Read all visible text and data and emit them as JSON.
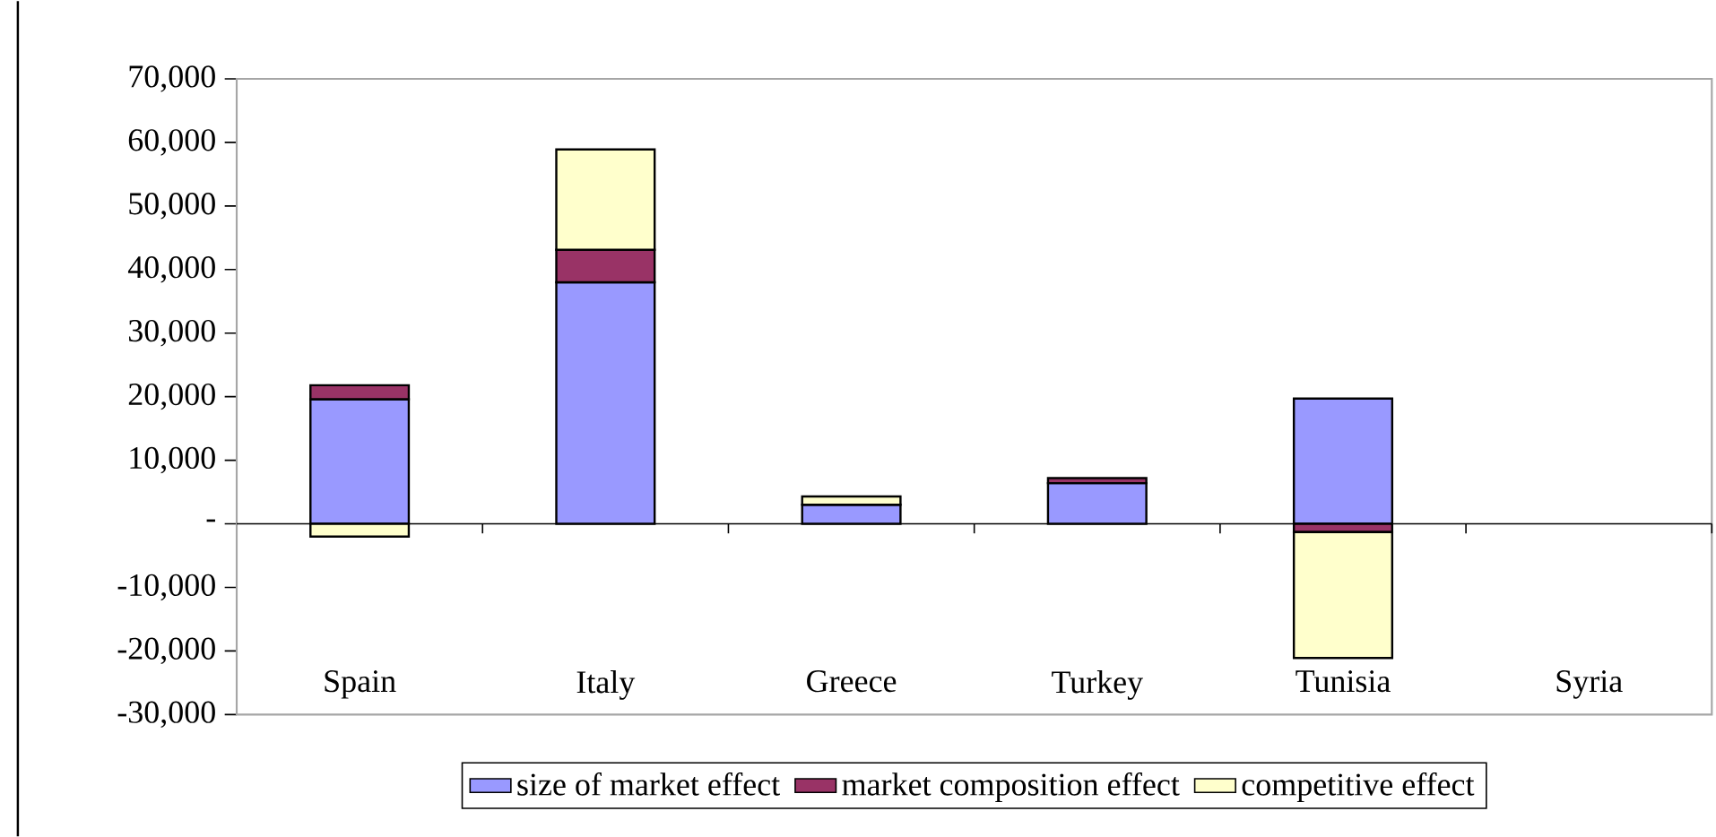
{
  "chart_data": {
    "type": "bar",
    "stacked": true,
    "categories": [
      "Spain",
      "Italy",
      "Greece",
      "Turkey",
      "Tunisia",
      "Syria"
    ],
    "series": [
      {
        "name": "size of market effect",
        "color": "#9999ff",
        "values": [
          19600,
          38000,
          3000,
          6400,
          19700,
          0
        ]
      },
      {
        "name": "market composition effect",
        "color": "#993366",
        "values": [
          2200,
          5100,
          0,
          800,
          -1300,
          0
        ]
      },
      {
        "name": "competitive effect",
        "color": "#ffffcc",
        "values": [
          -2000,
          15800,
          1300,
          0,
          -19800,
          0
        ]
      }
    ],
    "ylim": [
      -30000,
      70000
    ],
    "yticks": [
      {
        "value": -30000,
        "label": "-30,000"
      },
      {
        "value": -20000,
        "label": "-20,000"
      },
      {
        "value": -10000,
        "label": "-10,000"
      },
      {
        "value": 0,
        "label": "-"
      },
      {
        "value": 10000,
        "label": "10,000"
      },
      {
        "value": 20000,
        "label": "20,000"
      },
      {
        "value": 30000,
        "label": "30,000"
      },
      {
        "value": 40000,
        "label": "40,000"
      },
      {
        "value": 50000,
        "label": "50,000"
      },
      {
        "value": 60000,
        "label": "60,000"
      },
      {
        "value": 70000,
        "label": "70,000"
      }
    ],
    "legend": "bottom"
  }
}
